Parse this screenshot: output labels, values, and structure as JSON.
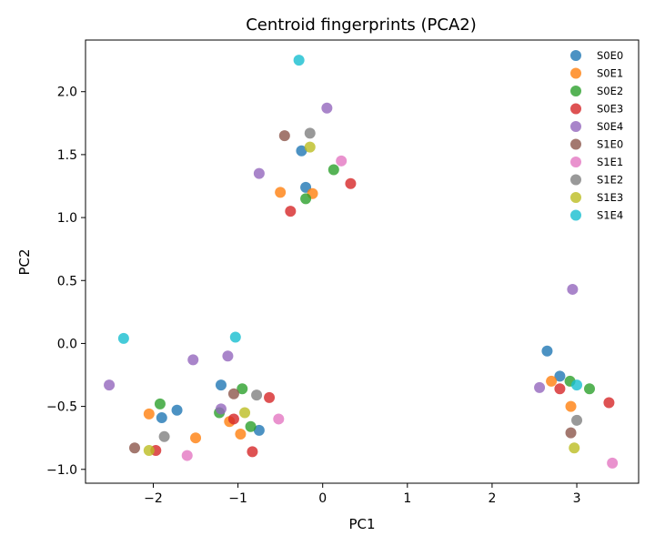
{
  "chart_data": {
    "type": "scatter",
    "title": "Centroid fingerprints (PCA2)",
    "xlabel": "PC1",
    "ylabel": "PC2",
    "xlim": [
      -2.8,
      3.73
    ],
    "ylim": [
      -1.11,
      2.41
    ],
    "xticks": [
      -2,
      -1,
      0,
      1,
      2,
      3
    ],
    "yticks": [
      -1.0,
      -0.5,
      0.0,
      0.5,
      1.0,
      1.5,
      2.0
    ],
    "ytick_labels": [
      "−1.0",
      "−0.5",
      "0.0",
      "0.5",
      "1.0",
      "1.5",
      "2.0"
    ],
    "xtick_labels": [
      "−2",
      "−1",
      "0",
      "1",
      "2",
      "3"
    ],
    "grid": false,
    "legend_position": "top-right",
    "series": [
      {
        "name": "S0E0",
        "color": "#1f77b4",
        "points": [
          [
            -0.25,
            1.53
          ],
          [
            -0.2,
            1.24
          ],
          [
            -1.2,
            -0.33
          ],
          [
            -1.9,
            -0.59
          ],
          [
            -1.72,
            -0.53
          ],
          [
            -0.75,
            -0.69
          ],
          [
            2.65,
            -0.06
          ],
          [
            2.8,
            -0.26
          ]
        ]
      },
      {
        "name": "S0E1",
        "color": "#ff7f0e",
        "points": [
          [
            -0.5,
            1.2
          ],
          [
            -0.12,
            1.19
          ],
          [
            -2.05,
            -0.56
          ],
          [
            -1.5,
            -0.75
          ],
          [
            -1.1,
            -0.62
          ],
          [
            -0.97,
            -0.72
          ],
          [
            2.7,
            -0.3
          ],
          [
            2.93,
            -0.5
          ]
        ]
      },
      {
        "name": "S0E2",
        "color": "#2ca02c",
        "points": [
          [
            0.13,
            1.38
          ],
          [
            -0.2,
            1.15
          ],
          [
            -1.92,
            -0.48
          ],
          [
            -1.22,
            -0.55
          ],
          [
            -0.95,
            -0.36
          ],
          [
            -0.85,
            -0.66
          ],
          [
            2.92,
            -0.3
          ],
          [
            3.15,
            -0.36
          ]
        ]
      },
      {
        "name": "S0E3",
        "color": "#d62728",
        "points": [
          [
            0.33,
            1.27
          ],
          [
            -0.38,
            1.05
          ],
          [
            -1.97,
            -0.85
          ],
          [
            -1.05,
            -0.6
          ],
          [
            -0.83,
            -0.86
          ],
          [
            -0.63,
            -0.43
          ],
          [
            2.8,
            -0.36
          ],
          [
            3.38,
            -0.47
          ]
        ]
      },
      {
        "name": "S0E4",
        "color": "#9467bd",
        "points": [
          [
            0.05,
            1.87
          ],
          [
            -0.75,
            1.35
          ],
          [
            -2.52,
            -0.33
          ],
          [
            -1.53,
            -0.13
          ],
          [
            -1.12,
            -0.1
          ],
          [
            -1.2,
            -0.52
          ],
          [
            2.95,
            0.43
          ],
          [
            2.56,
            -0.35
          ]
        ]
      },
      {
        "name": "S1E0",
        "color": "#8c564b",
        "points": [
          [
            -0.45,
            1.65
          ],
          [
            -2.22,
            -0.83
          ],
          [
            -1.05,
            -0.4
          ],
          [
            2.93,
            -0.71
          ]
        ]
      },
      {
        "name": "S1E1",
        "color": "#e377c2",
        "points": [
          [
            0.22,
            1.45
          ],
          [
            -1.6,
            -0.89
          ],
          [
            -0.52,
            -0.6
          ],
          [
            3.42,
            -0.95
          ]
        ]
      },
      {
        "name": "S1E2",
        "color": "#7f7f7f",
        "points": [
          [
            -0.15,
            1.67
          ],
          [
            -1.87,
            -0.74
          ],
          [
            -0.78,
            -0.41
          ],
          [
            3.0,
            -0.61
          ]
        ]
      },
      {
        "name": "S1E3",
        "color": "#bcbd22",
        "points": [
          [
            -0.15,
            1.56
          ],
          [
            -2.05,
            -0.85
          ],
          [
            -0.92,
            -0.55
          ],
          [
            2.97,
            -0.83
          ]
        ]
      },
      {
        "name": "S1E4",
        "color": "#17becf",
        "points": [
          [
            -0.28,
            2.25
          ],
          [
            -2.35,
            0.04
          ],
          [
            -1.03,
            0.05
          ],
          [
            3.0,
            -0.33
          ]
        ]
      }
    ]
  }
}
